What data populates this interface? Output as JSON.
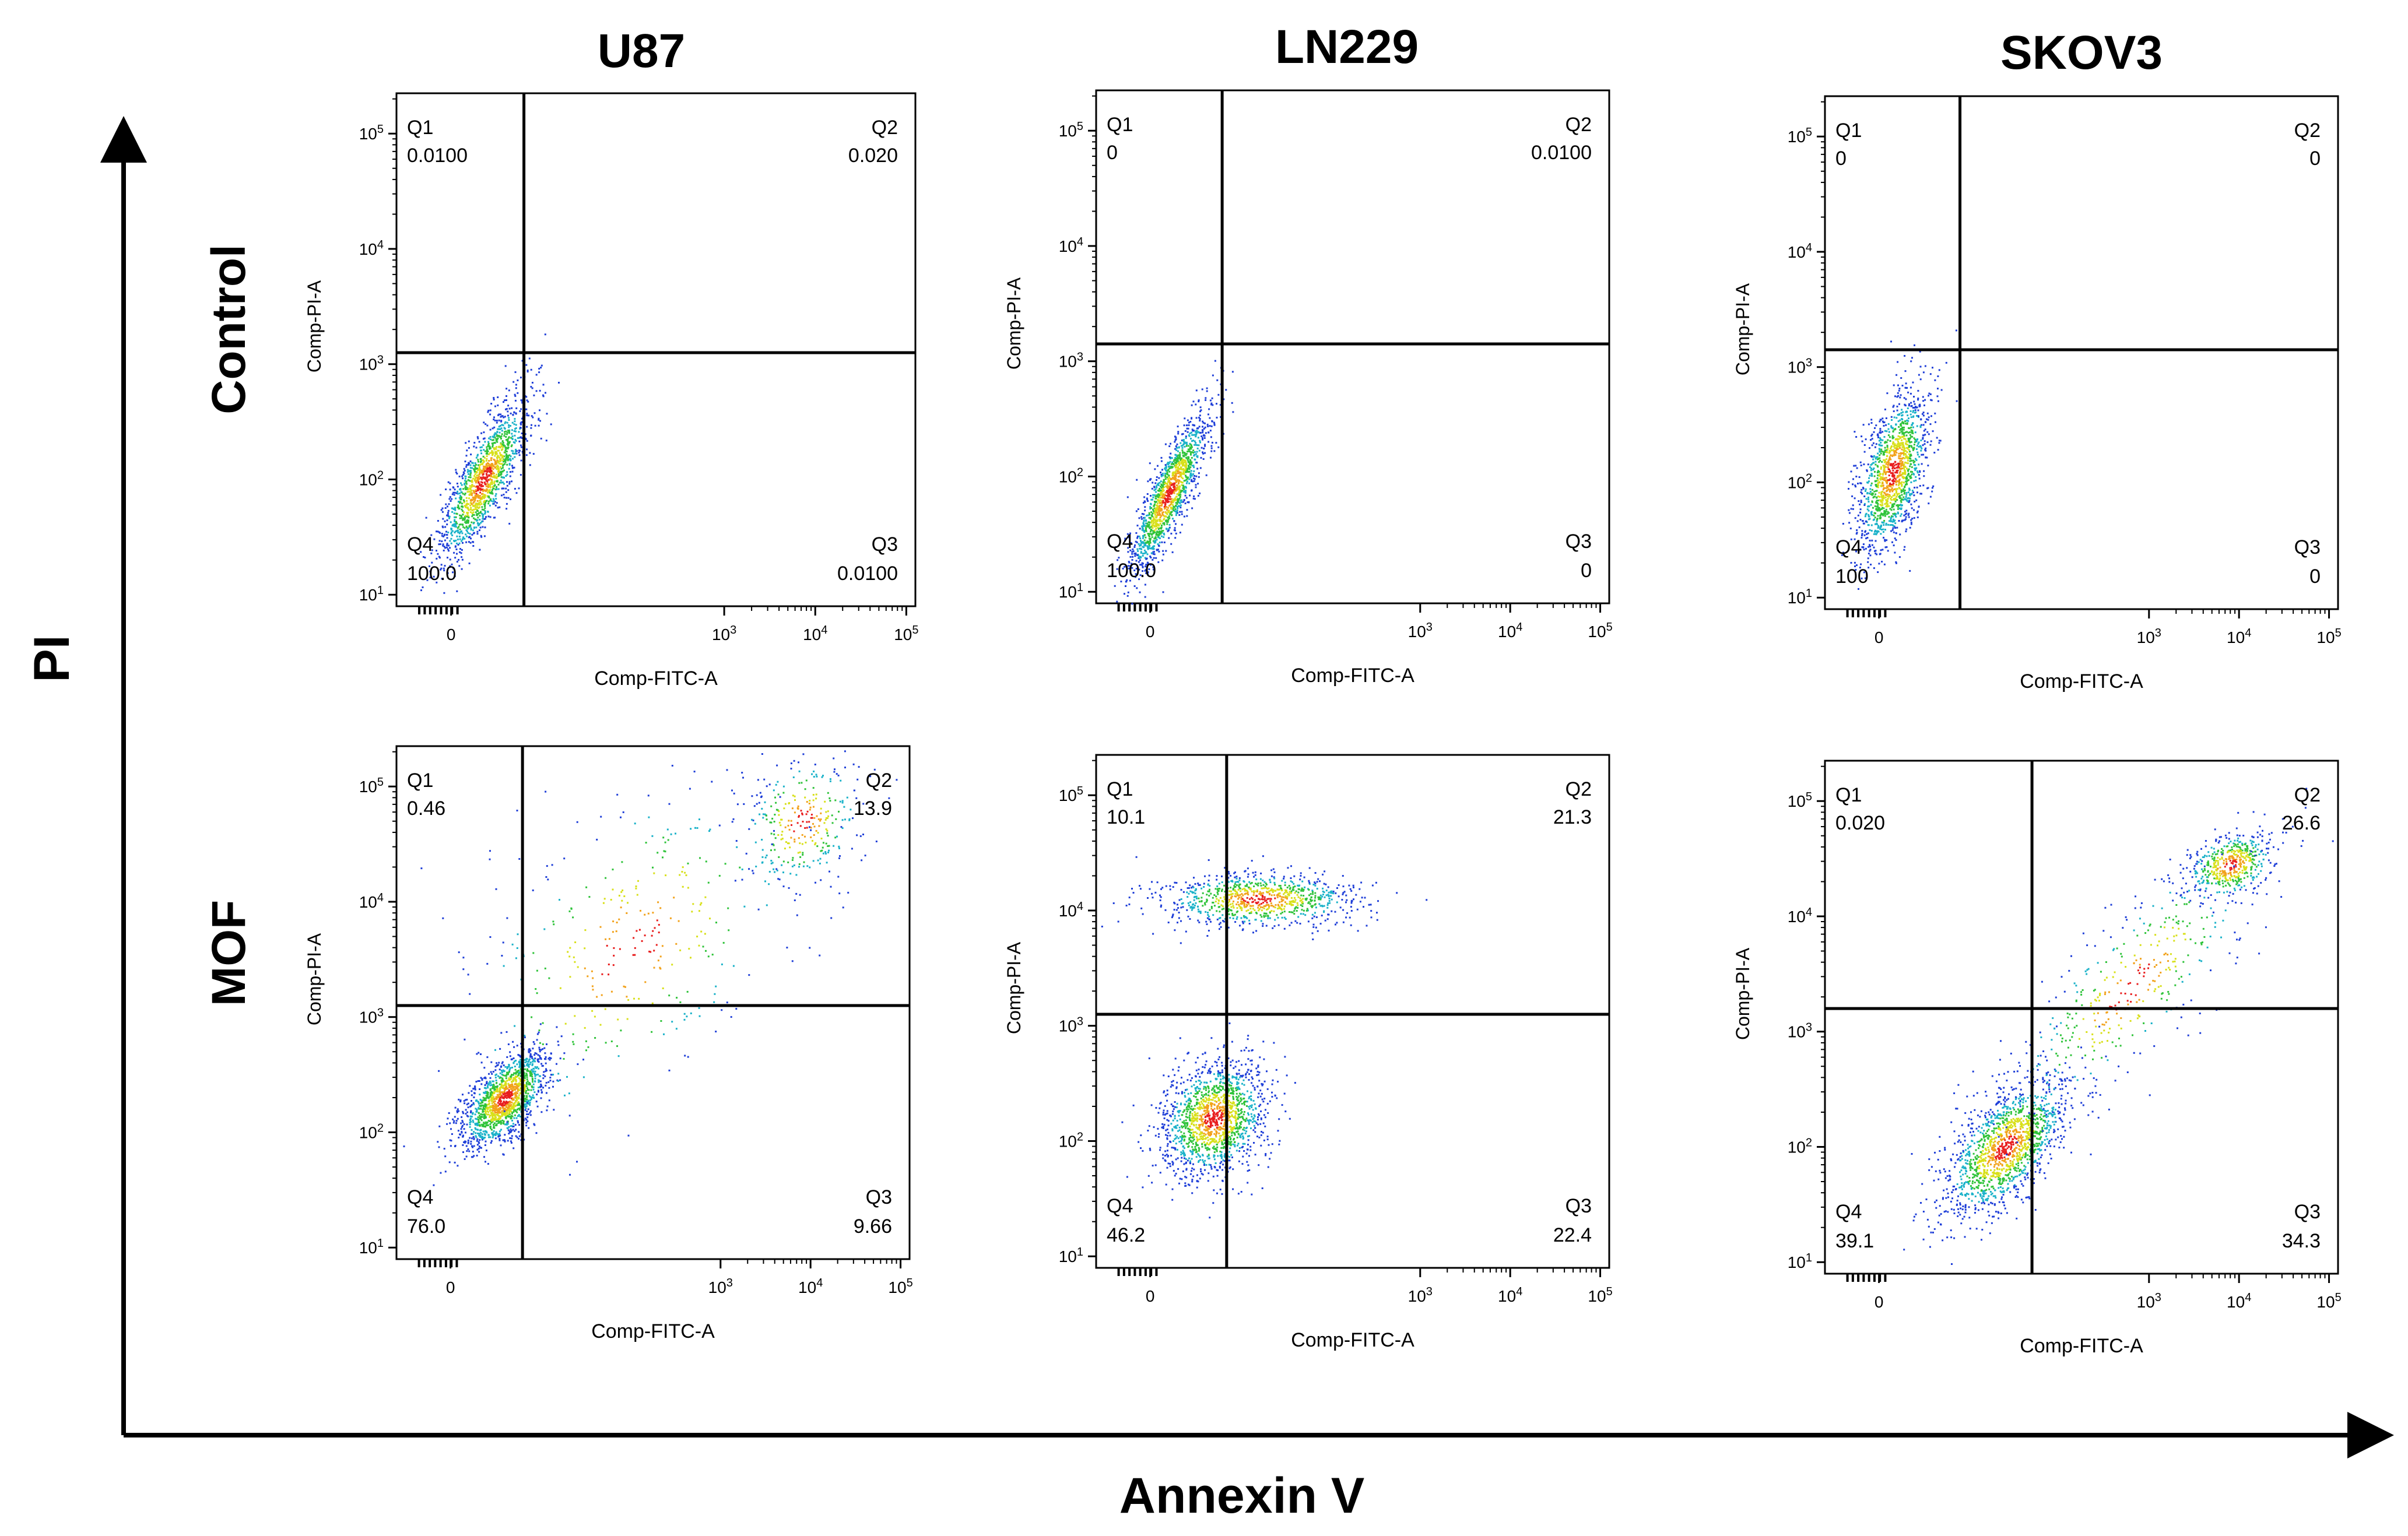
{
  "figure": {
    "x_axis_title": "Annexin V",
    "y_axis_title": "PI"
  },
  "columns": [
    "U87",
    "LN229",
    "SKOV3"
  ],
  "rows": [
    "Control",
    "MOF"
  ],
  "chart_data": [
    {
      "type": "scatter",
      "cell": "U87",
      "condition": "Control",
      "xlabel": "Comp-FITC-A",
      "ylabel": "Comp-PI-A",
      "x_ticks": [
        "0",
        "10^3",
        "10^4",
        "10^5"
      ],
      "y_ticks": [
        "10^1",
        "10^2",
        "10^3",
        "10^4",
        "10^5"
      ],
      "quadrants": {
        "Q1": "0.0100",
        "Q2": "0.020",
        "Q3": "0.0100",
        "Q4": "100.0"
      },
      "gate": {
        "x": 0.8,
        "y": 3.1
      },
      "clusters": [
        {
          "x": 0.35,
          "y": 2.0,
          "sx": 0.25,
          "sy": 0.35,
          "rho": 0.8,
          "n": 1400
        }
      ]
    },
    {
      "type": "scatter",
      "cell": "LN229",
      "condition": "Control",
      "xlabel": "Comp-FITC-A",
      "ylabel": "Comp-PI-A",
      "x_ticks": [
        "0",
        "10^3",
        "10^4",
        "10^5"
      ],
      "y_ticks": [
        "10^1",
        "10^2",
        "10^3",
        "10^4",
        "10^5"
      ],
      "quadrants": {
        "Q1": "0",
        "Q2": "0.0100",
        "Q3": "0",
        "Q4": "100.0"
      },
      "gate": {
        "x": 0.8,
        "y": 3.15
      },
      "clusters": [
        {
          "x": 0.2,
          "y": 1.85,
          "sx": 0.22,
          "sy": 0.35,
          "rho": 0.85,
          "n": 1400
        }
      ]
    },
    {
      "type": "scatter",
      "cell": "SKOV3",
      "condition": "Control",
      "xlabel": "Comp-FITC-A",
      "ylabel": "Comp-PI-A",
      "x_ticks": [
        "0",
        "10^3",
        "10^4",
        "10^5"
      ],
      "y_ticks": [
        "10^1",
        "10^2",
        "10^3",
        "10^4",
        "10^5"
      ],
      "quadrants": {
        "Q1": "0",
        "Q2": "0",
        "Q3": "0",
        "Q4": "100"
      },
      "gate": {
        "x": 0.9,
        "y": 3.15
      },
      "clusters": [
        {
          "x": 0.15,
          "y": 2.1,
          "sx": 0.2,
          "sy": 0.35,
          "rho": 0.5,
          "n": 1400
        }
      ]
    },
    {
      "type": "scatter",
      "cell": "U87",
      "condition": "MOF",
      "xlabel": "Comp-FITC-A",
      "ylabel": "Comp-PI-A",
      "x_ticks": [
        "0",
        "10^3",
        "10^4",
        "10^5"
      ],
      "y_ticks": [
        "10^1",
        "10^2",
        "10^3",
        "10^4",
        "10^5"
      ],
      "quadrants": {
        "Q1": "0.46",
        "Q2": "13.9",
        "Q3": "9.66",
        "Q4": "76.0"
      },
      "gate": {
        "x": 0.8,
        "y": 3.1
      },
      "clusters": [
        {
          "x": 0.6,
          "y": 2.3,
          "sx": 0.25,
          "sy": 0.22,
          "rho": 0.6,
          "n": 1500
        },
        {
          "x": 3.9,
          "y": 4.7,
          "sx": 0.35,
          "sy": 0.3,
          "rho": 0.2,
          "n": 300
        },
        {
          "x": 2.0,
          "y": 3.6,
          "sx": 1.0,
          "sy": 0.8,
          "rho": 0.5,
          "n": 350
        }
      ]
    },
    {
      "type": "scatter",
      "cell": "LN229",
      "condition": "MOF",
      "xlabel": "Comp-FITC-A",
      "ylabel": "Comp-PI-A",
      "x_ticks": [
        "0",
        "10^3",
        "10^4",
        "10^5"
      ],
      "y_ticks": [
        "10^1",
        "10^2",
        "10^3",
        "10^4",
        "10^5"
      ],
      "quadrants": {
        "Q1": "10.1",
        "Q2": "21.3",
        "Q3": "22.4",
        "Q4": "46.2"
      },
      "gate": {
        "x": 0.85,
        "y": 3.1
      },
      "clusters": [
        {
          "x": 0.7,
          "y": 2.2,
          "sx": 0.3,
          "sy": 0.25,
          "rho": 0.2,
          "n": 1500
        },
        {
          "x": 1.2,
          "y": 4.1,
          "sx": 0.55,
          "sy": 0.12,
          "rho": 0.0,
          "n": 900
        }
      ]
    },
    {
      "type": "scatter",
      "cell": "SKOV3",
      "condition": "MOF",
      "xlabel": "Comp-FITC-A",
      "ylabel": "Comp-PI-A",
      "x_ticks": [
        "0",
        "10^3",
        "10^4",
        "10^5"
      ],
      "y_ticks": [
        "10^1",
        "10^2",
        "10^3",
        "10^4",
        "10^5"
      ],
      "quadrants": {
        "Q1": "0.020",
        "Q2": "26.6",
        "Q3": "34.3",
        "Q4": "39.1"
      },
      "gate": {
        "x": 1.7,
        "y": 3.2
      },
      "clusters": [
        {
          "x": 1.4,
          "y": 2.0,
          "sx": 0.35,
          "sy": 0.3,
          "rho": 0.6,
          "n": 1500
        },
        {
          "x": 3.9,
          "y": 4.45,
          "sx": 0.25,
          "sy": 0.15,
          "rho": 0.3,
          "n": 500
        },
        {
          "x": 2.8,
          "y": 3.4,
          "sx": 0.7,
          "sy": 0.6,
          "rho": 0.8,
          "n": 400
        }
      ]
    }
  ]
}
